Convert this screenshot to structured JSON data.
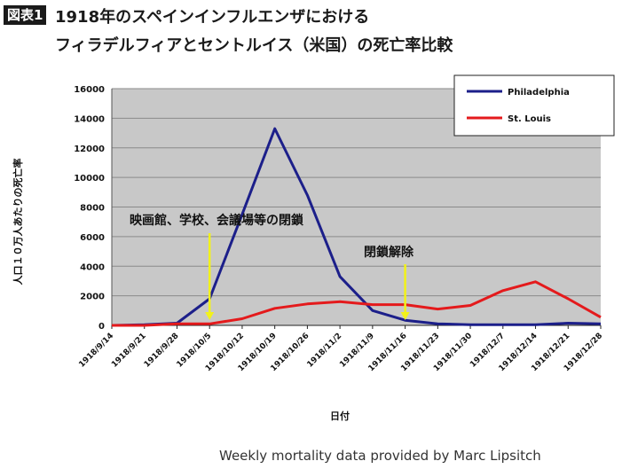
{
  "header": {
    "badge": "図表1",
    "title_line1": "1918年のスペインインフルエンザにおける",
    "title_line2": "フィラデルフィアとセントルイス（米国）の死亡率比較"
  },
  "credit": "Weekly mortality data provided by Marc Lipsitch",
  "annotations": {
    "closure": "映画館、学校、会議場等の閉鎖",
    "reopen": "閉鎖解除"
  },
  "colors": {
    "philadelphia": "#1c1f8a",
    "st_louis": "#e41a1c",
    "plot_bg": "#c8c8c8",
    "arrow": "#f2f21a"
  },
  "chart_data": {
    "type": "line",
    "xlabel": "日付",
    "ylabel": "人口１０万人あたりの死亡率",
    "ylim": [
      0,
      16000
    ],
    "yticks": [
      0,
      2000,
      4000,
      6000,
      8000,
      10000,
      12000,
      14000,
      16000
    ],
    "grid": true,
    "legend_position": "top-right",
    "x": [
      "1918/9/14",
      "1918/9/21",
      "1918/9/28",
      "1918/10/5",
      "1918/10/12",
      "1918/10/19",
      "1918/10/26",
      "1918/11/2",
      "1918/11/9",
      "1918/11/16",
      "1918/11/23",
      "1918/11/30",
      "1918/12/7",
      "1918/12/14",
      "1918/12/21",
      "1918/12/28"
    ],
    "series": [
      {
        "name": "Philadelphia",
        "values": [
          0,
          50,
          150,
          1800,
          7500,
          13300,
          8800,
          3300,
          1000,
          350,
          100,
          50,
          50,
          50,
          150,
          100
        ]
      },
      {
        "name": "St. Louis",
        "values": [
          0,
          0,
          100,
          100,
          450,
          1150,
          1450,
          1600,
          1400,
          1400,
          1100,
          1350,
          2350,
          2950,
          1800,
          550
        ]
      }
    ]
  }
}
